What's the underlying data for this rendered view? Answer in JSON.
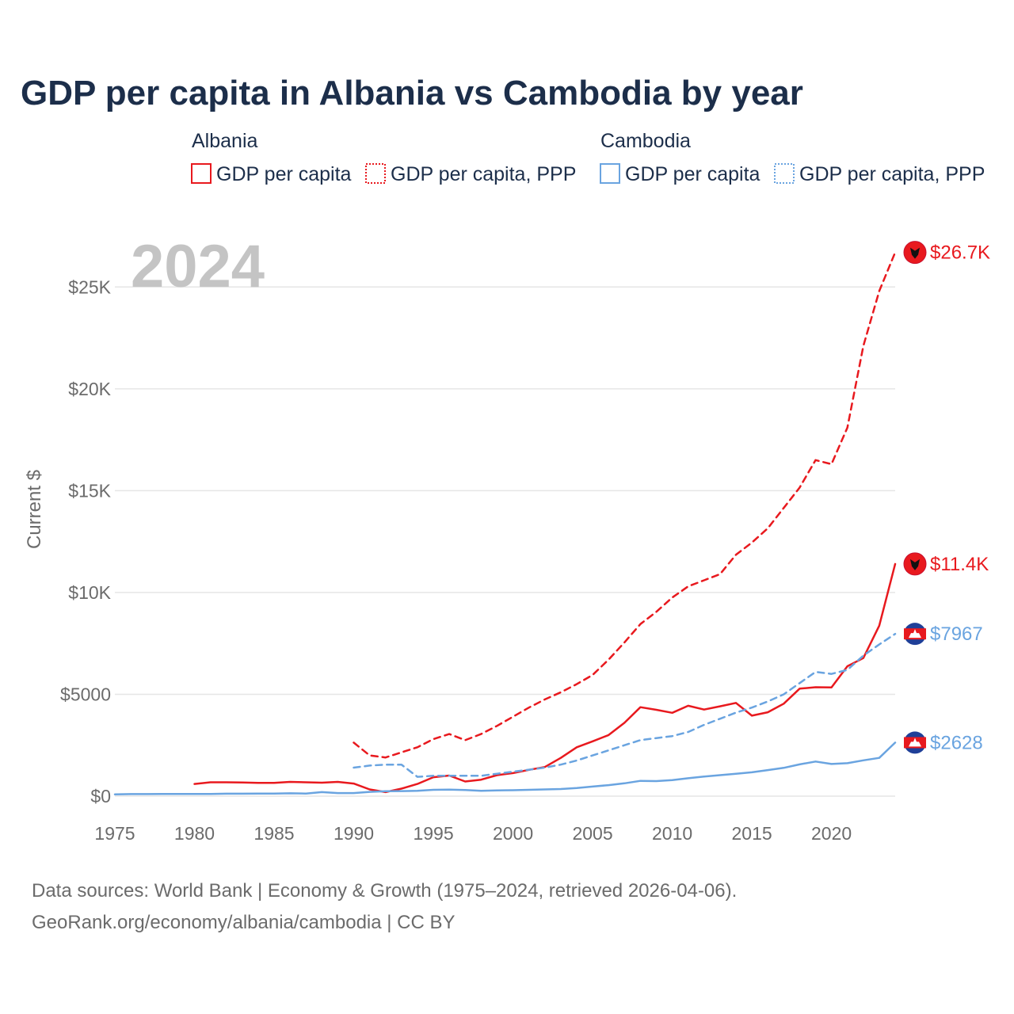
{
  "chart_data": {
    "type": "line",
    "title": "GDP per capita in Albania vs Cambodia by year",
    "ylabel": "Current $",
    "xlabel": "",
    "year_watermark": "2024",
    "xlim": [
      1975,
      2024
    ],
    "ylim": [
      0,
      27500
    ],
    "x_ticks": [
      1975,
      1980,
      1985,
      1990,
      1995,
      2000,
      2005,
      2010,
      2015,
      2020
    ],
    "y_ticks": [
      {
        "value": 0,
        "label": "$0"
      },
      {
        "value": 5000,
        "label": "$5000"
      },
      {
        "value": 10000,
        "label": "$10K"
      },
      {
        "value": 15000,
        "label": "$15K"
      },
      {
        "value": 20000,
        "label": "$20K"
      },
      {
        "value": 25000,
        "label": "$25K"
      }
    ],
    "legend": {
      "groups": [
        {
          "name": "Albania",
          "items": [
            "GDP per capita",
            "GDP per capita, PPP"
          ]
        },
        {
          "name": "Cambodia",
          "items": [
            "GDP per capita",
            "GDP per capita, PPP"
          ]
        }
      ]
    },
    "series": [
      {
        "name": "Albania GDP per capita",
        "country": "Albania",
        "color": "#e8191e",
        "style": "solid",
        "end_label": "$11.4K",
        "x": [
          1980,
          1981,
          1982,
          1983,
          1984,
          1985,
          1986,
          1987,
          1988,
          1989,
          1990,
          1991,
          1992,
          1993,
          1994,
          1995,
          1996,
          1997,
          1998,
          1999,
          2000,
          2001,
          2002,
          2003,
          2004,
          2005,
          2006,
          2007,
          2008,
          2009,
          2010,
          2011,
          2012,
          2013,
          2014,
          2015,
          2016,
          2017,
          2018,
          2019,
          2020,
          2021,
          2022,
          2023,
          2024
        ],
        "y": [
          600,
          680,
          680,
          670,
          650,
          650,
          700,
          680,
          660,
          700,
          620,
          330,
          200,
          370,
          600,
          930,
          1010,
          720,
          810,
          1030,
          1130,
          1290,
          1430,
          1880,
          2400,
          2690,
          3000,
          3600,
          4370,
          4240,
          4090,
          4440,
          4250,
          4410,
          4580,
          3950,
          4120,
          4540,
          5280,
          5350,
          5340,
          6380,
          6780,
          8370,
          11400
        ]
      },
      {
        "name": "Albania GDP per capita, PPP",
        "country": "Albania",
        "color": "#e8191e",
        "style": "dashed",
        "end_label": "$26.7K",
        "x": [
          1990,
          1991,
          1992,
          1993,
          1994,
          1995,
          1996,
          1997,
          1998,
          1999,
          2000,
          2001,
          2002,
          2003,
          2004,
          2005,
          2006,
          2007,
          2008,
          2009,
          2010,
          2011,
          2012,
          2013,
          2014,
          2015,
          2016,
          2017,
          2018,
          2019,
          2020,
          2021,
          2022,
          2023,
          2024
        ],
        "y": [
          2630,
          2000,
          1900,
          2150,
          2400,
          2800,
          3050,
          2750,
          3050,
          3450,
          3900,
          4350,
          4750,
          5100,
          5500,
          5950,
          6700,
          7550,
          8450,
          9050,
          9750,
          10300,
          10600,
          10900,
          11850,
          12450,
          13150,
          14150,
          15150,
          16500,
          16300,
          18100,
          22100,
          24800,
          26700
        ]
      },
      {
        "name": "Cambodia GDP per capita",
        "country": "Cambodia",
        "color": "#6aa4e0",
        "style": "solid",
        "end_label": "$2628",
        "x": [
          1975,
          1976,
          1977,
          1978,
          1979,
          1980,
          1981,
          1982,
          1983,
          1984,
          1985,
          1986,
          1987,
          1988,
          1989,
          1990,
          1991,
          1992,
          1993,
          1994,
          1995,
          1996,
          1997,
          1998,
          1999,
          2000,
          2001,
          2002,
          2003,
          2004,
          2005,
          2006,
          2007,
          2008,
          2009,
          2010,
          2011,
          2012,
          2013,
          2014,
          2015,
          2016,
          2017,
          2018,
          2019,
          2020,
          2021,
          2022,
          2023,
          2024
        ],
        "y": [
          90,
          100,
          100,
          110,
          110,
          110,
          110,
          120,
          120,
          130,
          130,
          140,
          130,
          200,
          150,
          150,
          210,
          240,
          250,
          260,
          310,
          320,
          300,
          260,
          280,
          290,
          310,
          330,
          350,
          400,
          470,
          540,
          630,
          750,
          740,
          790,
          880,
          960,
          1030,
          1100,
          1170,
          1280,
          1390,
          1560,
          1700,
          1580,
          1620,
          1760,
          1880,
          2628
        ]
      },
      {
        "name": "Cambodia GDP per capita, PPP",
        "country": "Cambodia",
        "color": "#6aa4e0",
        "style": "dashed",
        "end_label": "$7967",
        "x": [
          1990,
          1991,
          1992,
          1993,
          1994,
          1995,
          1996,
          1997,
          1998,
          1999,
          2000,
          2001,
          2002,
          2003,
          2004,
          2005,
          2006,
          2007,
          2008,
          2009,
          2010,
          2011,
          2012,
          2013,
          2014,
          2015,
          2016,
          2017,
          2018,
          2019,
          2020,
          2021,
          2022,
          2023,
          2024
        ],
        "y": [
          1400,
          1500,
          1550,
          1550,
          950,
          1000,
          1000,
          1000,
          1000,
          1100,
          1200,
          1300,
          1400,
          1550,
          1750,
          2000,
          2250,
          2500,
          2750,
          2850,
          2950,
          3150,
          3500,
          3800,
          4100,
          4350,
          4650,
          5000,
          5550,
          6100,
          6000,
          6200,
          6900,
          7450,
          7967
        ]
      }
    ]
  },
  "sources": {
    "line1": "Data sources: World Bank | Economy & Growth (1975–2024, retrieved 2026-04-06).",
    "line2": "GeoRank.org/economy/albania/cambodia | CC BY"
  }
}
